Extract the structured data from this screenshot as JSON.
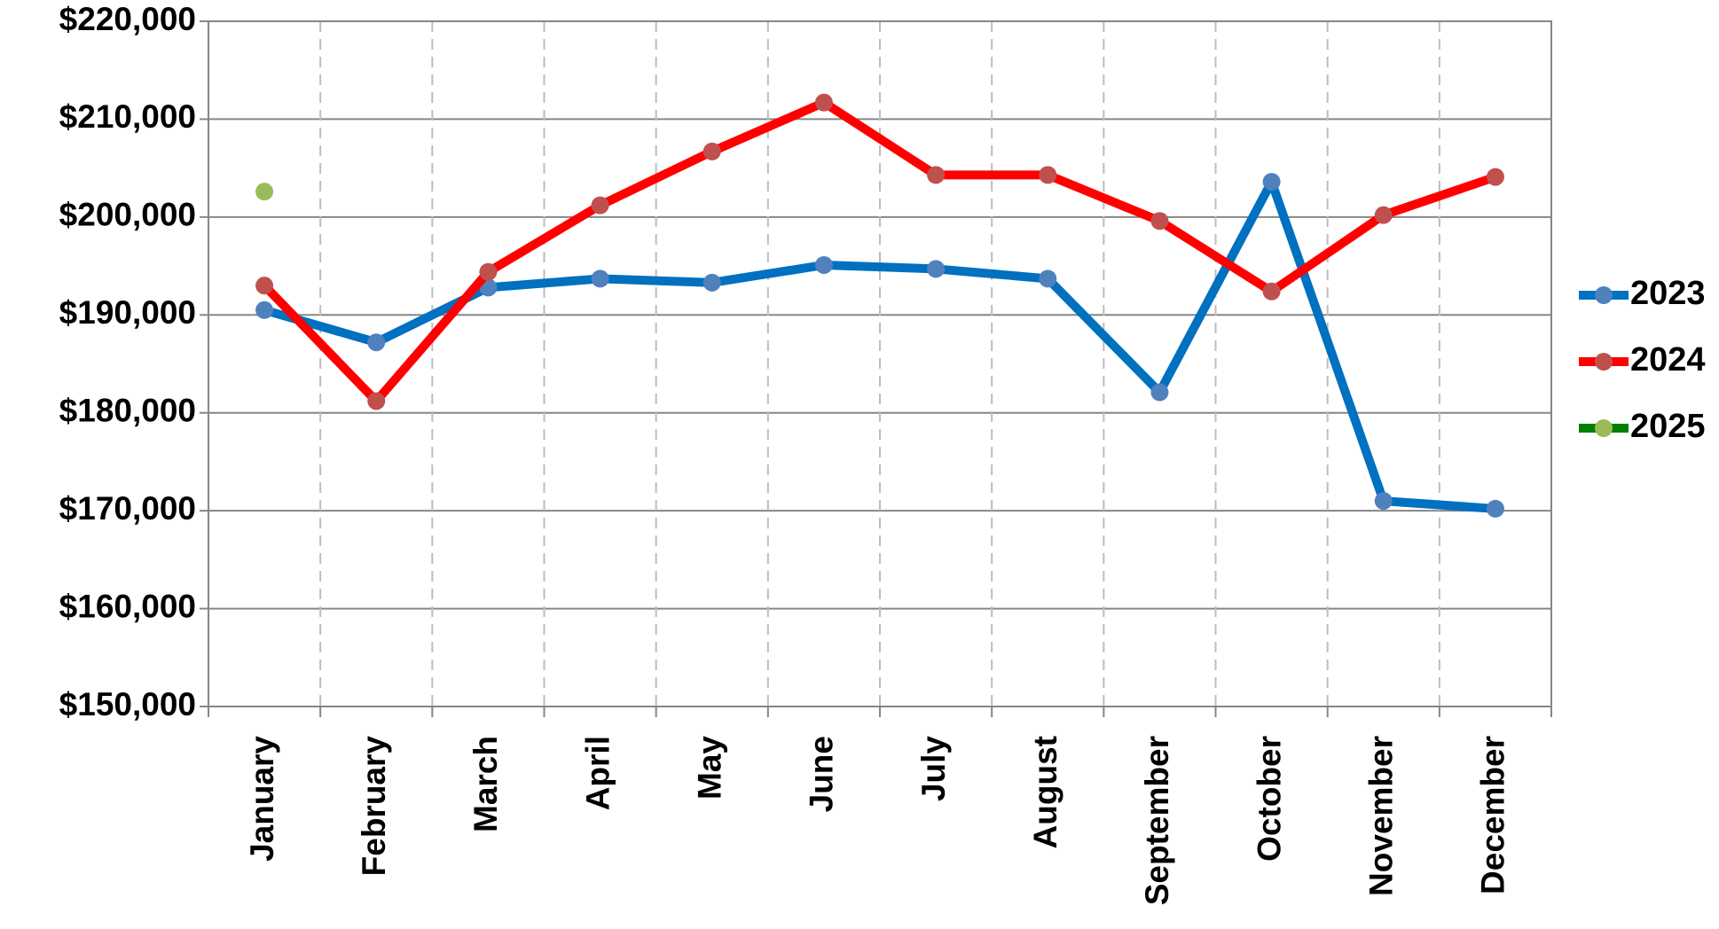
{
  "chart_data": {
    "type": "line",
    "categories": [
      "January",
      "February",
      "March",
      "April",
      "May",
      "June",
      "July",
      "August",
      "September",
      "October",
      "November",
      "December"
    ],
    "series": [
      {
        "name": "2023",
        "color": "#0070c0",
        "marker_color": "#4f81bd",
        "values": [
          190500,
          187200,
          192800,
          193700,
          193300,
          195100,
          194700,
          193700,
          182100,
          203600,
          171000,
          170200
        ]
      },
      {
        "name": "2024",
        "color": "#ff0000",
        "marker_color": "#c0504d",
        "values": [
          193000,
          181200,
          194400,
          201200,
          206700,
          211700,
          204300,
          204300,
          199600,
          192400,
          200200,
          204100
        ]
      },
      {
        "name": "2025",
        "color": "#008000",
        "marker_color": "#9bbb59",
        "values": [
          202600,
          null,
          null,
          null,
          null,
          null,
          null,
          null,
          null,
          null,
          null,
          null
        ]
      }
    ],
    "ylim": [
      150000,
      220000
    ],
    "yticks": [
      {
        "value": 150000,
        "label": "$150,000"
      },
      {
        "value": 160000,
        "label": "$160,000"
      },
      {
        "value": 170000,
        "label": "$170,000"
      },
      {
        "value": 180000,
        "label": "$180,000"
      },
      {
        "value": 190000,
        "label": "$190,000"
      },
      {
        "value": 200000,
        "label": "$200,000"
      },
      {
        "value": 210000,
        "label": "$210,000"
      },
      {
        "value": 220000,
        "label": "$220,000"
      }
    ],
    "grid": true,
    "legend": "right"
  }
}
